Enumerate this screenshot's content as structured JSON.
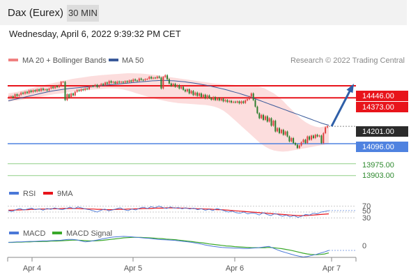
{
  "header": {
    "title": "Dax (Eurex)",
    "timeframe": "30 MIN",
    "datetime": "Wednesday, April 6, 2022 9:39:32 PM CET"
  },
  "colors": {
    "resistance": "#e8141b",
    "support_blue": "#4f82e0",
    "support_green": "#8fcf86",
    "ma20": "#f08080",
    "ma50": "#3a5a9a",
    "band": "#fbd7d7",
    "bull": "#e04040",
    "bear": "#2d7d2d",
    "rsi": "#4a78d8",
    "rsi_ma": "#e8141b",
    "macd": "#4a78d8",
    "macd_signal": "#3aa82a",
    "arrow": "#2f5fa8",
    "last_price_bg": "#2b2b2b"
  },
  "chart_data": [
    {
      "type": "line",
      "name": "price",
      "legend": [
        {
          "label": "MA 20 + Bollinger Bands",
          "color": "#f08080"
        },
        {
          "label": "MA 50",
          "color": "#3a5a9a"
        }
      ],
      "watermark": "Research © 2022 Trading Central",
      "ylim": [
        13860,
        14560
      ],
      "x_ticks": [
        "Apr 4",
        "Apr 5",
        "Apr 6",
        "Apr 7"
      ],
      "close_prices": [
        14380,
        14383,
        14375,
        14395,
        14385,
        14392,
        14405,
        14398,
        14410,
        14402,
        14418,
        14408,
        14420,
        14412,
        14425,
        14415,
        14430,
        14420,
        14425,
        14418,
        14430,
        14440,
        14432,
        14445,
        14438,
        14450,
        14470,
        14470,
        14360,
        14395,
        14375,
        14400,
        14388,
        14410,
        14420,
        14415,
        14425,
        14420,
        14430,
        14426,
        14440,
        14445,
        14442,
        14452,
        14438,
        14448,
        14458,
        14450,
        14466,
        14458,
        14475,
        14465,
        14470,
        14460,
        14472,
        14466,
        14470,
        14465,
        14474,
        14468,
        14478,
        14471,
        14485,
        14478,
        14475,
        14490,
        14482,
        14480,
        14486,
        14488,
        14500,
        14490,
        14495,
        14492,
        14502,
        14495,
        14430,
        14500,
        14510,
        14486,
        14460,
        14445,
        14458,
        14440,
        14450,
        14430,
        14440,
        14422,
        14412,
        14425,
        14400,
        14415,
        14390,
        14405,
        14385,
        14400,
        14378,
        14392,
        14370,
        14388,
        14372,
        14362,
        14378,
        14360,
        14372,
        14358,
        14368,
        14352,
        14360,
        14348,
        14355,
        14345,
        14350,
        14345,
        14352,
        14340,
        14352,
        14342,
        14358,
        14365,
        14380,
        14400,
        14360,
        14320,
        14280,
        14250,
        14270,
        14240,
        14262,
        14230,
        14250,
        14205,
        14235,
        14170,
        14190,
        14160,
        14180,
        14150,
        14170,
        14140,
        14110,
        14130,
        14100,
        14090,
        14070,
        14085,
        14105,
        14120,
        14100,
        14140,
        14120,
        14145,
        14130,
        14150,
        14140,
        14145,
        14100,
        14160,
        14195,
        14201
      ],
      "ma50": [
        14355,
        14360,
        14365,
        14370,
        14375,
        14380,
        14385,
        14390,
        14395,
        14400,
        14405,
        14410,
        14414,
        14418,
        14421,
        14424,
        14427,
        14430,
        14432,
        14434,
        14436,
        14438,
        14440,
        14442,
        14444,
        14446,
        14448,
        14450,
        14452,
        14454,
        14456,
        14458,
        14460,
        14462,
        14464,
        14466,
        14468,
        14470,
        14472,
        14474,
        14476,
        14477,
        14478,
        14478,
        14478,
        14477,
        14476,
        14474,
        14472,
        14470,
        14467,
        14464,
        14461,
        14457,
        14453,
        14449,
        14445,
        14440,
        14435,
        14430,
        14425,
        14419,
        14413,
        14407,
        14401,
        14394,
        14387,
        14380,
        14372,
        14364,
        14356,
        14348,
        14340,
        14332,
        14324,
        14316,
        14308,
        14300,
        14292,
        14284,
        14276,
        14268,
        14260,
        14252,
        14244,
        14236,
        14228,
        14220,
        14214,
        14208
      ],
      "bb_upper": [
        14400,
        14405,
        14410,
        14418,
        14425,
        14432,
        14440,
        14446,
        14452,
        14458,
        14464,
        14470,
        14476,
        14482,
        14488,
        14492,
        14496,
        14500,
        14504,
        14507,
        14510,
        14512,
        14514,
        14516,
        14518,
        14520,
        14522,
        14522,
        14521,
        14520,
        14518,
        14515,
        14512,
        14508,
        14504,
        14500,
        14496,
        14492,
        14488,
        14484,
        14480,
        14476,
        14472,
        14468,
        14464,
        14460,
        14458,
        14456,
        14454,
        14452,
        14450,
        14450,
        14450,
        14448,
        14446,
        14440,
        14430,
        14415,
        14400,
        14380,
        14355,
        14325,
        14300,
        14270,
        14245,
        14225,
        14210,
        14200,
        14195,
        14200,
        14210
      ],
      "bb_lower": [
        14350,
        14355,
        14358,
        14362,
        14368,
        14372,
        14376,
        14380,
        14385,
        14390,
        14395,
        14398,
        14402,
        14406,
        14410,
        14414,
        14418,
        14420,
        14422,
        14424,
        14426,
        14428,
        14430,
        14430,
        14428,
        14424,
        14418,
        14410,
        14400,
        14392,
        14384,
        14376,
        14368,
        14362,
        14356,
        14350,
        14346,
        14342,
        14340,
        14338,
        14336,
        14334,
        14332,
        14330,
        14326,
        14320,
        14310,
        14295,
        14275,
        14250,
        14225,
        14200,
        14175,
        14150,
        14125,
        14100,
        14080,
        14065,
        14055,
        14050,
        14048,
        14050,
        14055,
        14060,
        14065,
        14070,
        14075,
        14080,
        14085,
        14090,
        14095
      ],
      "levels": [
        {
          "label": "14446.00",
          "value": 14446,
          "type": "resistance"
        },
        {
          "label": "14373.00",
          "value": 14373,
          "type": "resistance"
        },
        {
          "label": "14201.00",
          "value": 14201,
          "type": "last"
        },
        {
          "label": "14096.00",
          "value": 14096,
          "type": "support_blue"
        },
        {
          "label": "13975.00",
          "value": 13975,
          "type": "support_green"
        },
        {
          "label": "13903.00",
          "value": 13903,
          "type": "support_green"
        }
      ],
      "projection": {
        "from_value": 14201,
        "to_value": 14446
      }
    },
    {
      "type": "line",
      "name": "rsi",
      "legend": [
        {
          "label": "RSI",
          "color": "#4a78d8"
        },
        {
          "label": "9MA",
          "color": "#e8141b"
        }
      ],
      "ylim": [
        15,
        85
      ],
      "y_ticks": [
        "70",
        "50",
        "30"
      ],
      "y_tick_values": [
        70,
        50,
        30
      ],
      "rsi": [
        55,
        52,
        58,
        62,
        57,
        60,
        63,
        58,
        61,
        56,
        62,
        59,
        64,
        60,
        58,
        62,
        66,
        61,
        67,
        64,
        60,
        58,
        54,
        50,
        56,
        60,
        54,
        57,
        61,
        64,
        58,
        55,
        60,
        57,
        63,
        66,
        62,
        68,
        64,
        70,
        65,
        62,
        67,
        63,
        65,
        61,
        64,
        60,
        63,
        58,
        61,
        56,
        59,
        55,
        62,
        58,
        54,
        50,
        53,
        48,
        46,
        50,
        44,
        47,
        45,
        40,
        48,
        42,
        38,
        45,
        41,
        36,
        40,
        34,
        38,
        32,
        36,
        42,
        40,
        46,
        44,
        50,
        52,
        55
      ],
      "rsi_ma": [
        56,
        56,
        57,
        57,
        58,
        58,
        59,
        59,
        60,
        60,
        60,
        61,
        61,
        61,
        62,
        62,
        62,
        62,
        62,
        61,
        61,
        60,
        60,
        59,
        59,
        58,
        58,
        58,
        59,
        59,
        59,
        60,
        60,
        61,
        61,
        62,
        62,
        62,
        63,
        63,
        63,
        64,
        64,
        64,
        63,
        63,
        63,
        62,
        62,
        61,
        61,
        60,
        60,
        59,
        58,
        58,
        57,
        56,
        55,
        54,
        53,
        52,
        51,
        50,
        49,
        48,
        47,
        46,
        45,
        44,
        43,
        42,
        41,
        40,
        39,
        38,
        38,
        38,
        39,
        40,
        41,
        42,
        43,
        44
      ]
    },
    {
      "type": "line",
      "name": "macd",
      "legend": [
        {
          "label": "MACD",
          "color": "#4a78d8"
        },
        {
          "label": "MACD Signal",
          "color": "#3aa82a"
        }
      ],
      "ylim": [
        -60,
        40
      ],
      "y_ticks": [
        "0"
      ],
      "y_tick_values": [
        0
      ],
      "macd": [
        8,
        9,
        10,
        10,
        11,
        12,
        12,
        13,
        14,
        14,
        15,
        16,
        16,
        18,
        20,
        20,
        18,
        14,
        10,
        12,
        15,
        18,
        22,
        25,
        28,
        30,
        31,
        32,
        31,
        30,
        28,
        27,
        25,
        24,
        22,
        20,
        19,
        18,
        17,
        16,
        14,
        12,
        10,
        8,
        5,
        2,
        -2,
        -5,
        -8,
        -10,
        -12,
        -13,
        -14,
        -15,
        -15,
        -16,
        -16,
        -15,
        -14,
        -12,
        -10,
        -8,
        -15,
        -22,
        -28,
        -33,
        -38,
        -43,
        -47,
        -50,
        -48,
        -44,
        -40,
        -35,
        -30,
        -24
      ],
      "macd_signal": [
        8,
        8,
        9,
        9,
        10,
        10,
        11,
        11,
        12,
        12,
        13,
        13,
        14,
        15,
        16,
        17,
        17,
        16,
        15,
        14,
        14,
        15,
        16,
        18,
        20,
        22,
        24,
        26,
        27,
        28,
        28,
        28,
        27,
        26,
        25,
        24,
        23,
        21,
        20,
        19,
        17,
        15,
        13,
        11,
        9,
        7,
        5,
        2,
        0,
        -2,
        -4,
        -6,
        -7,
        -9,
        -10,
        -11,
        -12,
        -13,
        -13,
        -13,
        -13,
        -12,
        -13,
        -15,
        -17,
        -20,
        -23,
        -27,
        -31,
        -35,
        -38,
        -40,
        -41,
        -40,
        -38,
        -34
      ]
    }
  ]
}
